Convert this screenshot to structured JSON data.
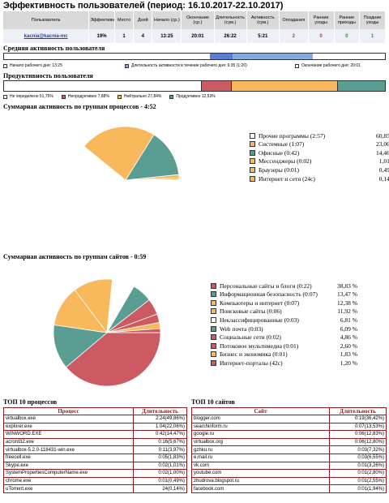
{
  "title": "Эффективность пользователей (период: 16.10.2017-22.10.2017)",
  "summary": {
    "headers": [
      "Пользователь",
      "Эффективность",
      "Место",
      "Дней",
      "Начало (ср.)",
      "Окончание (ср.)",
      "Длительность (сум.)",
      "Активность (сум.)",
      "Опоздания",
      "Ранние уходы",
      "Ранние приходы",
      "Поздние уходы"
    ],
    "row": [
      "kacnia@kacnia-mc",
      "19%",
      "1",
      "4",
      "13:25",
      "20:01",
      "26:22",
      "5:21",
      "2",
      "0",
      "0",
      "1"
    ]
  },
  "avg_activity": {
    "title": "Средняя активность пользователя",
    "legend": [
      "Начало рабочего дня: 13:25",
      "Длительность активности в течение рабочего дня: 6:35 (1:20)",
      "Окончание рабочего дня: 20:01"
    ],
    "colors": {
      "outside": "#ffffff",
      "active": "#8aa8e0",
      "active_dark": "#5b7fcf"
    }
  },
  "productivity": {
    "title": "Продуктивность пользователя",
    "legend": [
      "Не определено 51,75%",
      "Непродуктивно 7,88%",
      "Нейтрально 27,84%",
      "Продуктивно 12,53%"
    ],
    "values": [
      51.75,
      7.88,
      27.84,
      12.53
    ],
    "colors": [
      "#ffffff",
      "#cc5a63",
      "#f8b95c",
      "#5a9d93"
    ]
  },
  "process_groups": {
    "title": "Суммарная активность по группам процессов - 4:52",
    "items": [
      {
        "label": "Прочие программы (2:57)",
        "pct": "60,85 %",
        "value": 60.85,
        "color": "#ffffff"
      },
      {
        "label": "Системные (1:07)",
        "pct": "23,06 %",
        "value": 23.06,
        "color": "#f8b95c"
      },
      {
        "label": "Офисные (0:42)",
        "pct": "14,46 %",
        "value": 14.46,
        "color": "#5a9d93"
      },
      {
        "label": "Мессенджеры (0:02)",
        "pct": "1,01 %",
        "value": 1.01,
        "color": "#f8b95c"
      },
      {
        "label": "Браузеры (0:01)",
        "pct": "0,49 %",
        "value": 0.49,
        "color": "#f8b95c"
      },
      {
        "label": "Интернет и сети (24c)",
        "pct": "0,14 %",
        "value": 0.14,
        "color": "#f8b95c"
      }
    ]
  },
  "site_groups": {
    "title": "Суммарная активность по группам сайтов - 0:59",
    "items": [
      {
        "label": "Персональные сайты и блоги (0:22)",
        "pct": "38,83 %",
        "value": 38.83,
        "color": "#cc5a63"
      },
      {
        "label": "Информационная безопасность (0:07)",
        "pct": "13,47 %",
        "value": 13.47,
        "color": "#5a9d93"
      },
      {
        "label": "Компьютеры и интернет (0:07)",
        "pct": "12,38 %",
        "value": 12.38,
        "color": "#f8b95c"
      },
      {
        "label": "Поисковые сайты (0:06)",
        "pct": "11,92 %",
        "value": 11.92,
        "color": "#f8b95c"
      },
      {
        "label": "Неклассифицированные (0:03)",
        "pct": "6,81 %",
        "value": 6.81,
        "color": "#ffffff"
      },
      {
        "label": "Web почта (0:03)",
        "pct": "6,09 %",
        "value": 6.09,
        "color": "#5a9d93"
      },
      {
        "label": "Социальные сети (0:02)",
        "pct": "4,86 %",
        "value": 4.86,
        "color": "#cc5a63"
      },
      {
        "label": "Потоковое мультимедиа (0:01)",
        "pct": "2,60 %",
        "value": 2.6,
        "color": "#cc5a63"
      },
      {
        "label": "Бизнес и экономика (0:01)",
        "pct": "1,83 %",
        "value": 1.83,
        "color": "#f8b95c"
      },
      {
        "label": "Интернет-порталы (42c)",
        "pct": "1,20 %",
        "value": 1.2,
        "color": "#cc5a63"
      }
    ]
  },
  "top_processes": {
    "title": "ТОП 10 процессов",
    "headers": [
      "Процесс",
      "Длительность"
    ],
    "rows": [
      [
        "virtualbox.exe",
        "2:24(49,86%)"
      ],
      [
        "explorer.exe",
        "1:04(22,06%)"
      ],
      [
        "WINWORD.EXE",
        "0:42(14,47%)"
      ],
      [
        "acrord32.exe",
        "0:16(5,67%)"
      ],
      [
        "virtualbox-5.2.0-118431-win.exe",
        "0:11(3,97%)"
      ],
      [
        "freecell.exe",
        "0:05(1,83%)"
      ],
      [
        "Skype.exe",
        "0:02(1,01%)"
      ],
      [
        "SystemPropertiesComputerName.exe",
        "0:02(1,00%)"
      ],
      [
        "chrome.exe",
        "0:01(0,49%)"
      ],
      [
        "uTorrent.exe",
        "24(0,14%)"
      ]
    ]
  },
  "top_sites": {
    "title": "ТОП 10 сайтов",
    "headers": [
      "Сайт",
      "Длительность"
    ],
    "rows": [
      [
        "blogger.com",
        "0:19(36,42%)"
      ],
      [
        "searchinform.ru",
        "0:07(13,53%)"
      ],
      [
        "google.ru",
        "0:06(12,83%)"
      ],
      [
        "virtualbox.org",
        "0:06(12,80%)"
      ],
      [
        "gzhku.ru",
        "0:03(7,32%)"
      ],
      [
        "e.mail.ru",
        "0:03(6,55%)"
      ],
      [
        "vk.com",
        "0:01(3,26%)"
      ],
      [
        "youtube.com",
        "0:01(2,80%)"
      ],
      [
        "zhudrova.blogspot.ru",
        "0:01(2,55%)"
      ],
      [
        "facebook.com",
        "0:01(1,94%)"
      ]
    ]
  }
}
